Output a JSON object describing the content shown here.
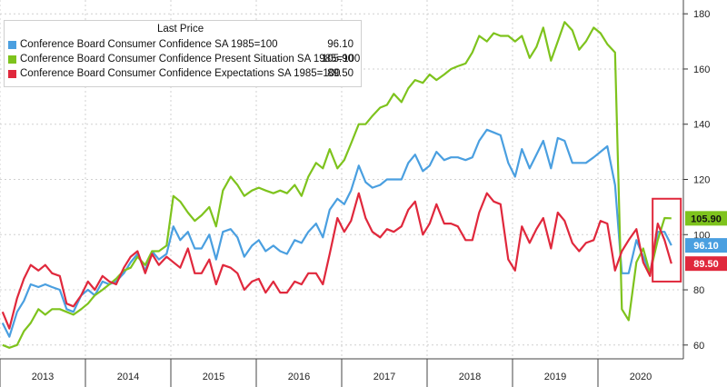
{
  "chart_data": {
    "type": "line",
    "ylim": [
      55,
      185
    ],
    "y_ticks": [
      60,
      80,
      100,
      120,
      140,
      160,
      180
    ],
    "x_years": [
      "2013",
      "2014",
      "2015",
      "2016",
      "2017",
      "2018",
      "2019",
      "2020"
    ],
    "legend": {
      "header": "Last Price",
      "position": "top-left"
    },
    "grid": true,
    "highlight_box": {
      "note": "red box around last 2020 readings",
      "color": "#e0283c"
    },
    "series": [
      {
        "name": "Conference Board Consumer Confidence SA 1985=100",
        "last_price": "96.10",
        "label": "96.10",
        "color": "#4a9fe0",
        "points": [
          [
            2013.0,
            68
          ],
          [
            2013.08,
            63
          ],
          [
            2013.17,
            72
          ],
          [
            2013.25,
            76
          ],
          [
            2013.33,
            82
          ],
          [
            2013.42,
            81
          ],
          [
            2013.5,
            82
          ],
          [
            2013.58,
            81
          ],
          [
            2013.67,
            80
          ],
          [
            2013.75,
            73
          ],
          [
            2013.83,
            72
          ],
          [
            2013.92,
            78
          ],
          [
            2014.0,
            80
          ],
          [
            2014.08,
            78
          ],
          [
            2014.17,
            83
          ],
          [
            2014.25,
            82
          ],
          [
            2014.33,
            83
          ],
          [
            2014.42,
            86
          ],
          [
            2014.5,
            90
          ],
          [
            2014.58,
            93
          ],
          [
            2014.67,
            87
          ],
          [
            2014.75,
            94
          ],
          [
            2014.83,
            91
          ],
          [
            2014.92,
            93
          ],
          [
            2015.0,
            103
          ],
          [
            2015.08,
            98
          ],
          [
            2015.17,
            101
          ],
          [
            2015.25,
            95
          ],
          [
            2015.33,
            95
          ],
          [
            2015.42,
            100
          ],
          [
            2015.5,
            91
          ],
          [
            2015.58,
            101
          ],
          [
            2015.67,
            102
          ],
          [
            2015.75,
            99
          ],
          [
            2015.83,
            92
          ],
          [
            2015.92,
            96
          ],
          [
            2016.0,
            98
          ],
          [
            2016.08,
            94
          ],
          [
            2016.17,
            96
          ],
          [
            2016.25,
            94
          ],
          [
            2016.33,
            93
          ],
          [
            2016.42,
            98
          ],
          [
            2016.5,
            97
          ],
          [
            2016.58,
            101
          ],
          [
            2016.67,
            104
          ],
          [
            2016.75,
            99
          ],
          [
            2016.83,
            109
          ],
          [
            2016.92,
            113
          ],
          [
            2017.0,
            111
          ],
          [
            2017.08,
            116
          ],
          [
            2017.17,
            125
          ],
          [
            2017.25,
            119
          ],
          [
            2017.33,
            117
          ],
          [
            2017.42,
            118
          ],
          [
            2017.5,
            120
          ],
          [
            2017.58,
            120
          ],
          [
            2017.67,
            120
          ],
          [
            2017.75,
            126
          ],
          [
            2017.83,
            129
          ],
          [
            2017.92,
            123
          ],
          [
            2018.0,
            125
          ],
          [
            2018.08,
            130
          ],
          [
            2018.17,
            127
          ],
          [
            2018.25,
            128
          ],
          [
            2018.33,
            128
          ],
          [
            2018.42,
            127
          ],
          [
            2018.5,
            128
          ],
          [
            2018.58,
            134
          ],
          [
            2018.67,
            138
          ],
          [
            2018.75,
            137
          ],
          [
            2018.83,
            136
          ],
          [
            2018.92,
            126
          ],
          [
            2019.0,
            121
          ],
          [
            2019.08,
            131
          ],
          [
            2019.17,
            124
          ],
          [
            2019.25,
            129
          ],
          [
            2019.33,
            134
          ],
          [
            2019.42,
            124
          ],
          [
            2019.5,
            135
          ],
          [
            2019.58,
            134
          ],
          [
            2019.67,
            126
          ],
          [
            2019.75,
            126
          ],
          [
            2019.83,
            126
          ],
          [
            2019.92,
            128
          ],
          [
            2020.0,
            130
          ],
          [
            2020.08,
            132
          ],
          [
            2020.17,
            118
          ],
          [
            2020.25,
            86
          ],
          [
            2020.33,
            86
          ],
          [
            2020.42,
            98
          ],
          [
            2020.5,
            92
          ],
          [
            2020.58,
            86
          ],
          [
            2020.67,
            101
          ],
          [
            2020.75,
            101
          ],
          [
            2020.83,
            96.1
          ]
        ]
      },
      {
        "name": "Conference Board Consumer Confidence Present Situation SA 1985=100",
        "last_price": "105.90",
        "label": "105.90",
        "color": "#7ec31d",
        "points": [
          [
            2013.0,
            60
          ],
          [
            2013.08,
            59
          ],
          [
            2013.17,
            60
          ],
          [
            2013.25,
            65
          ],
          [
            2013.33,
            68
          ],
          [
            2013.42,
            73
          ],
          [
            2013.5,
            71
          ],
          [
            2013.58,
            73
          ],
          [
            2013.67,
            73
          ],
          [
            2013.75,
            72
          ],
          [
            2013.83,
            71
          ],
          [
            2013.92,
            73
          ],
          [
            2014.0,
            75
          ],
          [
            2014.08,
            78
          ],
          [
            2014.17,
            80
          ],
          [
            2014.25,
            82
          ],
          [
            2014.33,
            84
          ],
          [
            2014.42,
            87
          ],
          [
            2014.5,
            88
          ],
          [
            2014.58,
            92
          ],
          [
            2014.67,
            89
          ],
          [
            2014.75,
            94
          ],
          [
            2014.83,
            94
          ],
          [
            2014.92,
            96
          ],
          [
            2015.0,
            114
          ],
          [
            2015.08,
            112
          ],
          [
            2015.17,
            108
          ],
          [
            2015.25,
            105
          ],
          [
            2015.33,
            107
          ],
          [
            2015.42,
            110
          ],
          [
            2015.5,
            103
          ],
          [
            2015.58,
            116
          ],
          [
            2015.67,
            121
          ],
          [
            2015.75,
            118
          ],
          [
            2015.83,
            114
          ],
          [
            2015.92,
            116
          ],
          [
            2016.0,
            117
          ],
          [
            2016.08,
            116
          ],
          [
            2016.17,
            115
          ],
          [
            2016.25,
            116
          ],
          [
            2016.33,
            115
          ],
          [
            2016.42,
            118
          ],
          [
            2016.5,
            114
          ],
          [
            2016.58,
            121
          ],
          [
            2016.67,
            126
          ],
          [
            2016.75,
            124
          ],
          [
            2016.83,
            131
          ],
          [
            2016.92,
            124
          ],
          [
            2017.0,
            127
          ],
          [
            2017.08,
            133
          ],
          [
            2017.17,
            140
          ],
          [
            2017.25,
            140
          ],
          [
            2017.33,
            143
          ],
          [
            2017.42,
            146
          ],
          [
            2017.5,
            147
          ],
          [
            2017.58,
            151
          ],
          [
            2017.67,
            148
          ],
          [
            2017.75,
            153
          ],
          [
            2017.83,
            156
          ],
          [
            2017.92,
            155
          ],
          [
            2018.0,
            158
          ],
          [
            2018.08,
            156
          ],
          [
            2018.17,
            158
          ],
          [
            2018.25,
            160
          ],
          [
            2018.33,
            161
          ],
          [
            2018.42,
            162
          ],
          [
            2018.5,
            166
          ],
          [
            2018.58,
            172
          ],
          [
            2018.67,
            170
          ],
          [
            2018.75,
            173
          ],
          [
            2018.83,
            172
          ],
          [
            2018.92,
            172
          ],
          [
            2019.0,
            170
          ],
          [
            2019.08,
            172
          ],
          [
            2019.17,
            164
          ],
          [
            2019.25,
            168
          ],
          [
            2019.33,
            175
          ],
          [
            2019.42,
            163
          ],
          [
            2019.5,
            170
          ],
          [
            2019.58,
            177
          ],
          [
            2019.67,
            174
          ],
          [
            2019.75,
            167
          ],
          [
            2019.83,
            170
          ],
          [
            2019.92,
            175
          ],
          [
            2020.0,
            173
          ],
          [
            2020.08,
            169
          ],
          [
            2020.17,
            166
          ],
          [
            2020.25,
            73
          ],
          [
            2020.33,
            69
          ],
          [
            2020.42,
            90
          ],
          [
            2020.5,
            95
          ],
          [
            2020.58,
            86
          ],
          [
            2020.67,
            98
          ],
          [
            2020.75,
            106
          ],
          [
            2020.83,
            105.9
          ]
        ]
      },
      {
        "name": "Conference Board Consumer Confidence Expectations SA 1985=100",
        "last_price": "89.50",
        "label": "89.50",
        "color": "#e0283c",
        "points": [
          [
            2013.0,
            72
          ],
          [
            2013.08,
            66
          ],
          [
            2013.17,
            77
          ],
          [
            2013.25,
            84
          ],
          [
            2013.33,
            89
          ],
          [
            2013.42,
            87
          ],
          [
            2013.5,
            89
          ],
          [
            2013.58,
            86
          ],
          [
            2013.67,
            85
          ],
          [
            2013.75,
            75
          ],
          [
            2013.83,
            74
          ],
          [
            2013.92,
            78
          ],
          [
            2014.0,
            83
          ],
          [
            2014.08,
            80
          ],
          [
            2014.17,
            85
          ],
          [
            2014.25,
            83
          ],
          [
            2014.33,
            82
          ],
          [
            2014.42,
            88
          ],
          [
            2014.5,
            92
          ],
          [
            2014.58,
            94
          ],
          [
            2014.67,
            86
          ],
          [
            2014.75,
            93
          ],
          [
            2014.83,
            89
          ],
          [
            2014.92,
            92
          ],
          [
            2015.0,
            90
          ],
          [
            2015.08,
            88
          ],
          [
            2015.17,
            95
          ],
          [
            2015.25,
            86
          ],
          [
            2015.33,
            86
          ],
          [
            2015.42,
            91
          ],
          [
            2015.5,
            82
          ],
          [
            2015.58,
            89
          ],
          [
            2015.67,
            88
          ],
          [
            2015.75,
            86
          ],
          [
            2015.83,
            80
          ],
          [
            2015.92,
            83
          ],
          [
            2016.0,
            84
          ],
          [
            2016.08,
            79
          ],
          [
            2016.17,
            83
          ],
          [
            2016.25,
            79
          ],
          [
            2016.33,
            79
          ],
          [
            2016.42,
            83
          ],
          [
            2016.5,
            82
          ],
          [
            2016.58,
            86
          ],
          [
            2016.67,
            86
          ],
          [
            2016.75,
            82
          ],
          [
            2016.83,
            93
          ],
          [
            2016.92,
            106
          ],
          [
            2017.0,
            101
          ],
          [
            2017.08,
            105
          ],
          [
            2017.17,
            115
          ],
          [
            2017.25,
            106
          ],
          [
            2017.33,
            101
          ],
          [
            2017.42,
            99
          ],
          [
            2017.5,
            102
          ],
          [
            2017.58,
            101
          ],
          [
            2017.67,
            103
          ],
          [
            2017.75,
            109
          ],
          [
            2017.83,
            112
          ],
          [
            2017.92,
            100
          ],
          [
            2018.0,
            104
          ],
          [
            2018.08,
            111
          ],
          [
            2018.17,
            104
          ],
          [
            2018.25,
            104
          ],
          [
            2018.33,
            103
          ],
          [
            2018.42,
            98
          ],
          [
            2018.5,
            98
          ],
          [
            2018.58,
            108
          ],
          [
            2018.67,
            115
          ],
          [
            2018.75,
            112
          ],
          [
            2018.83,
            111
          ],
          [
            2018.92,
            91
          ],
          [
            2019.0,
            87
          ],
          [
            2019.08,
            103
          ],
          [
            2019.17,
            97
          ],
          [
            2019.25,
            102
          ],
          [
            2019.33,
            106
          ],
          [
            2019.42,
            95
          ],
          [
            2019.5,
            108
          ],
          [
            2019.58,
            105
          ],
          [
            2019.67,
            97
          ],
          [
            2019.75,
            94
          ],
          [
            2019.83,
            97
          ],
          [
            2019.92,
            98
          ],
          [
            2020.0,
            105
          ],
          [
            2020.08,
            104
          ],
          [
            2020.17,
            87
          ],
          [
            2020.25,
            94
          ],
          [
            2020.33,
            98
          ],
          [
            2020.42,
            102
          ],
          [
            2020.5,
            90
          ],
          [
            2020.58,
            85
          ],
          [
            2020.67,
            104
          ],
          [
            2020.75,
            98
          ],
          [
            2020.83,
            89.5
          ]
        ]
      }
    ]
  }
}
